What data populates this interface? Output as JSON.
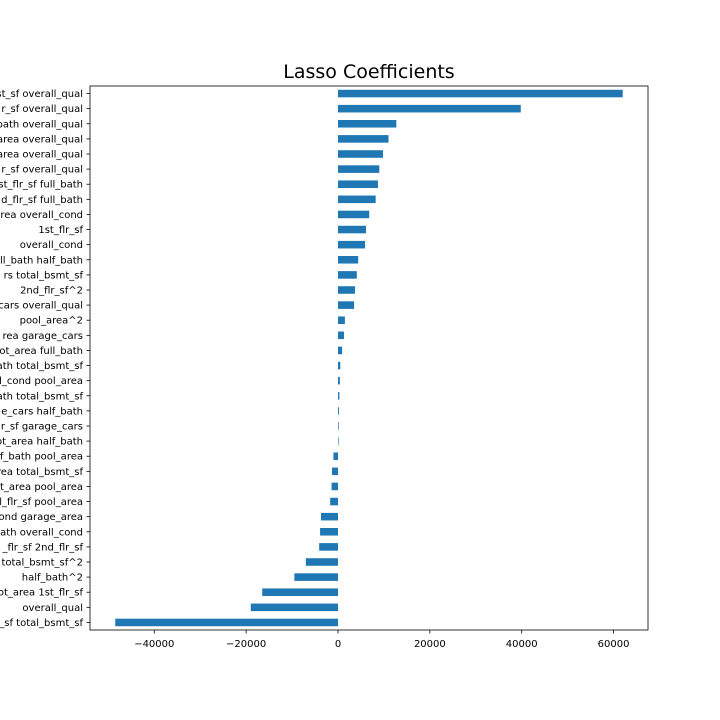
{
  "chart_data": {
    "type": "bar",
    "orientation": "horizontal",
    "title": "Lasso Coefficients",
    "xlabel": "",
    "ylabel": "",
    "xlim": [
      -54000,
      67500
    ],
    "x_ticks": [
      -40000,
      -20000,
      0,
      20000,
      40000,
      60000
    ],
    "x_tick_labels": [
      "−40000",
      "−20000",
      "0",
      "20000",
      "40000",
      "60000"
    ],
    "grid": false,
    "bar_color": "#1f77b4",
    "categories": [
      "st_sf overall_qual",
      "r_sf overall_qual",
      "bath overall_qual",
      "area overall_qual",
      "area overall_qual",
      "r_sf overall_qual",
      "st_flr_sf full_bath",
      "d_flr_sf full_bath",
      "area overall_cond",
      "1st_flr_sf",
      "overall_cond",
      "ll_bath half_bath",
      "rs total_bsmt_sf",
      "2nd_flr_sf^2",
      "cars overall_qual",
      "pool_area^2",
      "rea garage_cars",
      "ot_area full_bath",
      "ath total_bsmt_sf",
      "l_cond pool_area",
      "ath total_bsmt_sf",
      "e_cars half_bath",
      "r_sf garage_cars",
      "ot_area half_bath",
      "f_bath pool_area",
      "rea total_bsmt_sf",
      "t_area pool_area",
      "l_flr_sf pool_area",
      "ond garage_area",
      "ath overall_cond",
      "_flr_sf 2nd_flr_sf",
      "total_bsmt_sf^2",
      "half_bath^2",
      "ot_area 1st_flr_sf",
      "overall_qual",
      "_sf total_bsmt_sf"
    ],
    "values": [
      62000,
      39800,
      12700,
      11000,
      9800,
      9000,
      8700,
      8200,
      6800,
      6100,
      5900,
      4400,
      4100,
      3700,
      3500,
      1500,
      1300,
      900,
      500,
      400,
      300,
      200,
      150,
      100,
      -1000,
      -1300,
      -1400,
      -1700,
      -3700,
      -3900,
      -4100,
      -7000,
      -9500,
      -16500,
      -19000,
      -48500
    ]
  }
}
